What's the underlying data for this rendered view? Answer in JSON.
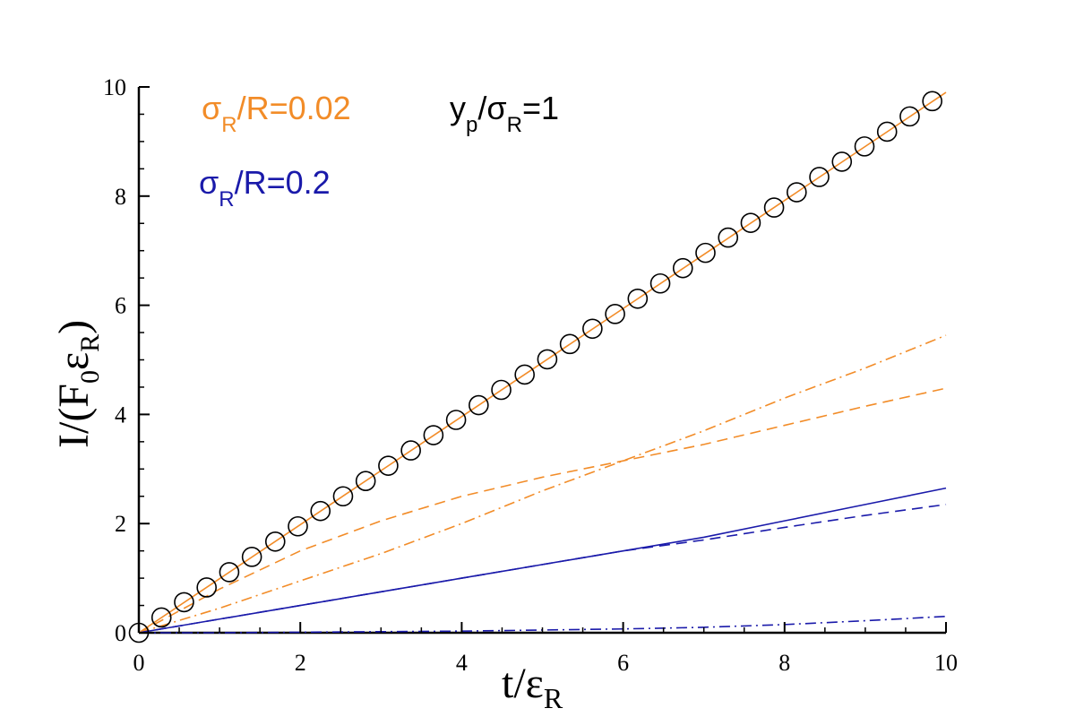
{
  "chart_data": {
    "type": "line",
    "x_range": [
      0,
      10
    ],
    "y_range": [
      0,
      10
    ],
    "x_ticks": [
      0,
      2,
      4,
      6,
      8,
      10
    ],
    "y_ticks": [
      0,
      2,
      4,
      6,
      8,
      10
    ],
    "x_tick_labels": [
      "0",
      "2",
      "4",
      "6",
      "8",
      "10"
    ],
    "y_tick_labels": [
      "0",
      "2",
      "4",
      "6",
      "8",
      "10"
    ],
    "grid": false,
    "xlabel": {
      "main": "t/ε",
      "sub": "R"
    },
    "ylabel": {
      "main": "I/(F",
      "sub1": "0",
      "mid": "ε",
      "sub2": "R",
      "end": ")"
    },
    "annotations": [
      {
        "id": "orange",
        "main": "σ",
        "sub": "R",
        "rest": "/R=0.02",
        "color": "#f28c28"
      },
      {
        "id": "black",
        "pre": "y",
        "sub1": "p",
        "mid": "/σ",
        "sub2": "R",
        "rest": "=1",
        "color": "#000000"
      },
      {
        "id": "blue",
        "main": "σ",
        "sub": "R",
        "rest": "/R=0.2",
        "color": "#1a1aaa"
      }
    ],
    "series": [
      {
        "style": "solid",
        "color": "#f28c28",
        "x": [
          0,
          1,
          2,
          3,
          4,
          5,
          6,
          7,
          8,
          9,
          10
        ],
        "y": [
          0,
          0.99,
          1.98,
          2.97,
          3.96,
          4.95,
          5.94,
          6.93,
          7.92,
          8.91,
          9.9
        ]
      },
      {
        "style": "dashed",
        "color": "#f28c28",
        "x": [
          0,
          1,
          2,
          3,
          4,
          5,
          6,
          7,
          8,
          9,
          10
        ],
        "y": [
          0,
          0.8,
          1.5,
          2.05,
          2.5,
          2.85,
          3.15,
          3.45,
          3.8,
          4.15,
          4.48
        ]
      },
      {
        "style": "dashdot",
        "color": "#f28c28",
        "x": [
          0,
          1,
          2,
          3,
          4,
          5,
          6,
          7,
          8,
          9,
          10
        ],
        "y": [
          0,
          0.45,
          0.95,
          1.45,
          2.0,
          2.6,
          3.15,
          3.7,
          4.3,
          4.85,
          5.45
        ]
      },
      {
        "style": "solid",
        "color": "#1a1aaa",
        "x": [
          0,
          1,
          2,
          3,
          4,
          5,
          6,
          7,
          8,
          9,
          10
        ],
        "y": [
          0,
          0.25,
          0.5,
          0.75,
          1.0,
          1.25,
          1.5,
          1.75,
          2.05,
          2.35,
          2.65
        ]
      },
      {
        "style": "dashed",
        "color": "#1a1aaa",
        "x": [
          0,
          1,
          2,
          3,
          4,
          5,
          6,
          7,
          8,
          9,
          10
        ],
        "y": [
          0,
          0.25,
          0.5,
          0.75,
          1.0,
          1.25,
          1.5,
          1.7,
          1.93,
          2.15,
          2.35
        ]
      },
      {
        "style": "dashdot",
        "color": "#1a1aaa",
        "x": [
          0,
          1,
          2,
          3,
          4,
          5,
          6,
          7,
          8,
          9,
          10
        ],
        "y": [
          0,
          0.0,
          0.01,
          0.02,
          0.03,
          0.05,
          0.07,
          0.1,
          0.15,
          0.22,
          0.3
        ]
      }
    ],
    "markers": {
      "shape": "circle",
      "color": "#000000",
      "x": [
        0,
        0.28,
        0.56,
        0.84,
        1.12,
        1.4,
        1.69,
        1.97,
        2.25,
        2.53,
        2.81,
        3.09,
        3.37,
        3.65,
        3.93,
        4.21,
        4.49,
        4.78,
        5.06,
        5.34,
        5.62,
        5.9,
        6.18,
        6.46,
        6.74,
        7.02,
        7.3,
        7.58,
        7.87,
        8.15,
        8.43,
        8.71,
        8.99,
        9.27,
        9.55,
        9.83
      ],
      "y": [
        0,
        0.28,
        0.56,
        0.83,
        1.11,
        1.39,
        1.67,
        1.95,
        2.23,
        2.5,
        2.78,
        3.06,
        3.34,
        3.62,
        3.9,
        4.17,
        4.45,
        4.73,
        5.01,
        5.29,
        5.57,
        5.84,
        6.12,
        6.4,
        6.68,
        6.96,
        7.24,
        7.51,
        7.79,
        8.07,
        8.35,
        8.63,
        8.91,
        9.18,
        9.46,
        9.74
      ]
    }
  }
}
